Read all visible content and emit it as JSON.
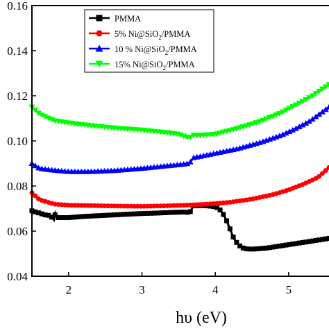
{
  "chart_data": {
    "type": "scatter",
    "xlabel": "hυ (eV)",
    "ylabel": "",
    "xlim": [
      1.5,
      5.55
    ],
    "ylim": [
      0.04,
      0.16
    ],
    "xticks": [
      2,
      3,
      4,
      5
    ],
    "xtick_labels": [
      "2",
      "3",
      "4",
      "5"
    ],
    "yticks": [
      0.04,
      0.06,
      0.08,
      0.1,
      0.12,
      0.14,
      0.16
    ],
    "ytick_labels": [
      "0.04",
      "0.06",
      "0.08",
      "0.10",
      "0.12",
      "0.14",
      "0.16"
    ],
    "grid": false,
    "legend_position": "top-left",
    "series": [
      {
        "name": "PMMA",
        "legend_prefix": "PMMA",
        "legend_sub": "",
        "legend_suffix": "",
        "color": "#000000",
        "marker": "square",
        "x": [
          1.5,
          1.6,
          1.7,
          1.75,
          1.8,
          1.82,
          1.85,
          1.9,
          2.0,
          2.2,
          2.5,
          2.8,
          3.0,
          3.2,
          3.4,
          3.6,
          3.65,
          3.7,
          3.8,
          3.9,
          4.0,
          4.05,
          4.1,
          4.15,
          4.2,
          4.25,
          4.3,
          4.35,
          4.4,
          4.5,
          4.7,
          4.9,
          5.1,
          5.3,
          5.55
        ],
        "y": [
          0.069,
          0.068,
          0.067,
          0.067,
          0.065,
          0.068,
          0.066,
          0.066,
          0.066,
          0.0665,
          0.067,
          0.0675,
          0.0678,
          0.068,
          0.0683,
          0.0685,
          0.068,
          0.0712,
          0.0713,
          0.0712,
          0.0708,
          0.07,
          0.068,
          0.065,
          0.061,
          0.057,
          0.0545,
          0.053,
          0.0522,
          0.052,
          0.0525,
          0.0535,
          0.0545,
          0.0555,
          0.0568
        ]
      },
      {
        "name": "5% Ni@SiO2/PMMA",
        "legend_prefix": "5% Ni@SiO",
        "legend_sub": "2",
        "legend_suffix": "/PMMA",
        "color": "#ff0000",
        "marker": "circle",
        "x": [
          1.5,
          1.6,
          1.8,
          2.0,
          2.5,
          3.0,
          3.3,
          3.6,
          3.8,
          4.0,
          4.2,
          4.5,
          4.8,
          5.0,
          5.2,
          5.4,
          5.55
        ],
        "y": [
          0.077,
          0.074,
          0.072,
          0.0715,
          0.0712,
          0.071,
          0.0712,
          0.0715,
          0.0718,
          0.0722,
          0.0728,
          0.0742,
          0.0763,
          0.0783,
          0.0808,
          0.0838,
          0.0882
        ]
      },
      {
        "name": "10 % Ni@SiO2/PMMA",
        "legend_prefix": "10 % Ni@SiO",
        "legend_sub": "2",
        "legend_suffix": "/PMMA",
        "color": "#0000ff",
        "marker": "triangle-up",
        "x": [
          1.5,
          1.6,
          1.8,
          2.0,
          2.3,
          2.6,
          3.0,
          3.3,
          3.6,
          3.65,
          3.7,
          4.0,
          4.3,
          4.6,
          4.9,
          5.1,
          5.3,
          5.55
        ],
        "y": [
          0.09,
          0.0878,
          0.087,
          0.0864,
          0.0864,
          0.0868,
          0.0878,
          0.0888,
          0.0898,
          0.0902,
          0.0925,
          0.0945,
          0.0965,
          0.0992,
          0.1025,
          0.1055,
          0.109,
          0.115
        ]
      },
      {
        "name": "15% Ni@SiO2/PMMA",
        "legend_prefix": "15% Ni@SiO",
        "legend_sub": "2",
        "legend_suffix": "/PMMA",
        "color": "#00ff00",
        "marker": "triangle-down",
        "x": [
          1.5,
          1.6,
          1.8,
          2.0,
          2.3,
          2.6,
          3.0,
          3.3,
          3.5,
          3.6,
          3.65,
          3.7,
          3.8,
          4.0,
          4.3,
          4.6,
          4.9,
          5.1,
          5.3,
          5.55
        ],
        "y": [
          0.115,
          0.112,
          0.109,
          0.108,
          0.1068,
          0.1058,
          0.1048,
          0.1038,
          0.103,
          0.1018,
          0.1015,
          0.1025,
          0.1025,
          0.103,
          0.1055,
          0.1085,
          0.1125,
          0.116,
          0.1195,
          0.125
        ]
      }
    ]
  }
}
